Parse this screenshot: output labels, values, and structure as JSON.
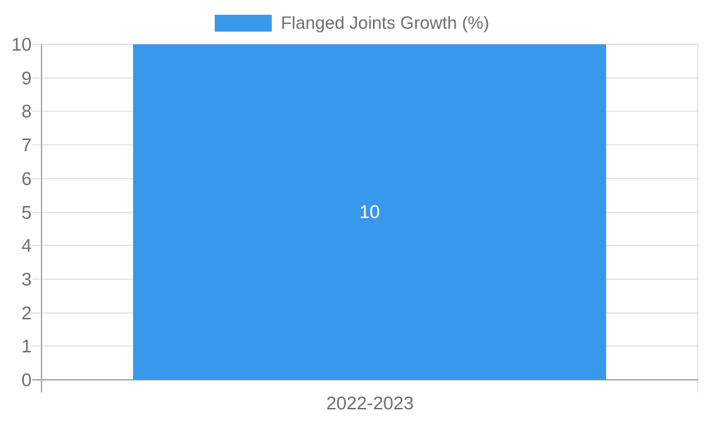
{
  "chart_data": {
    "type": "bar",
    "title": "",
    "categories": [
      "2022-2023"
    ],
    "series": [
      {
        "name": "Flanged Joints Growth (%)",
        "color": "#3899EC",
        "values": [
          10
        ]
      }
    ],
    "bar_labels": [
      "10"
    ],
    "yticks": [
      "0",
      "1",
      "2",
      "3",
      "4",
      "5",
      "6",
      "7",
      "8",
      "9",
      "10"
    ],
    "ylim": [
      0,
      10
    ],
    "grid": true,
    "legend_position": "top",
    "xlabel": "",
    "ylabel": "",
    "colors": {
      "bar": "#3899EC",
      "bar_label": "#ffffff",
      "gridline": "#e7e7e7",
      "axis_line": "#ababab",
      "tick_text": "#6f6f6f"
    }
  }
}
